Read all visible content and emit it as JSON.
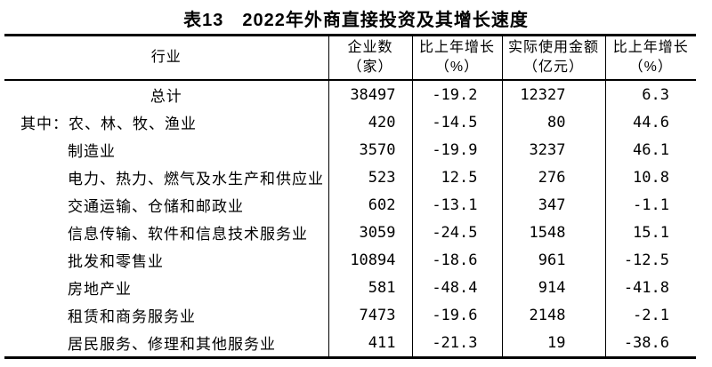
{
  "title": "表13　2022年外商直接投资及其增长速度",
  "header": {
    "industry": "行业",
    "enterprises_l1": "企业数",
    "enterprises_l2": "（家）",
    "ent_growth_l1": "比上年增长",
    "ent_growth_l2": "（%）",
    "amount_l1": "实际使用金额",
    "amount_l2": "（亿元）",
    "amt_growth_l1": "比上年增长",
    "amt_growth_l2": "（%）"
  },
  "chart_data": {
    "type": "table",
    "title": "表13　2022年外商直接投资及其增长速度",
    "columns": [
      "行业",
      "企业数（家）",
      "比上年增长（%）",
      "实际使用金额（亿元）",
      "比上年增长（%）"
    ],
    "rows": [
      {
        "industry": "总计",
        "enterprises": "38497",
        "enterprises_growth_pct": "-19.2",
        "amount_100m_yuan": "12327",
        "amount_growth_pct": "6.3"
      },
      {
        "industry": "其中：农、林、牧、渔业",
        "enterprises": "420",
        "enterprises_growth_pct": "-14.5",
        "amount_100m_yuan": "80",
        "amount_growth_pct": "44.6"
      },
      {
        "industry": "制造业",
        "enterprises": "3570",
        "enterprises_growth_pct": "-19.9",
        "amount_100m_yuan": "3237",
        "amount_growth_pct": "46.1"
      },
      {
        "industry": "电力、热力、燃气及水生产和供应业",
        "enterprises": "523",
        "enterprises_growth_pct": "12.5",
        "amount_100m_yuan": "276",
        "amount_growth_pct": "10.8"
      },
      {
        "industry": "交通运输、仓储和邮政业",
        "enterprises": "602",
        "enterprises_growth_pct": "-13.1",
        "amount_100m_yuan": "347",
        "amount_growth_pct": "-1.1"
      },
      {
        "industry": "信息传输、软件和信息技术服务业",
        "enterprises": "3059",
        "enterprises_growth_pct": "-24.5",
        "amount_100m_yuan": "1548",
        "amount_growth_pct": "15.1"
      },
      {
        "industry": "批发和零售业",
        "enterprises": "10894",
        "enterprises_growth_pct": "-18.6",
        "amount_100m_yuan": "961",
        "amount_growth_pct": "-12.5"
      },
      {
        "industry": "房地产业",
        "enterprises": "581",
        "enterprises_growth_pct": "-48.4",
        "amount_100m_yuan": "914",
        "amount_growth_pct": "-41.8"
      },
      {
        "industry": "租赁和商务服务业",
        "enterprises": "7473",
        "enterprises_growth_pct": "-19.6",
        "amount_100m_yuan": "2148",
        "amount_growth_pct": "-2.1"
      },
      {
        "industry": "居民服务、修理和其他服务业",
        "enterprises": "411",
        "enterprises_growth_pct": "-21.3",
        "amount_100m_yuan": "19",
        "amount_growth_pct": "-38.6"
      }
    ]
  }
}
